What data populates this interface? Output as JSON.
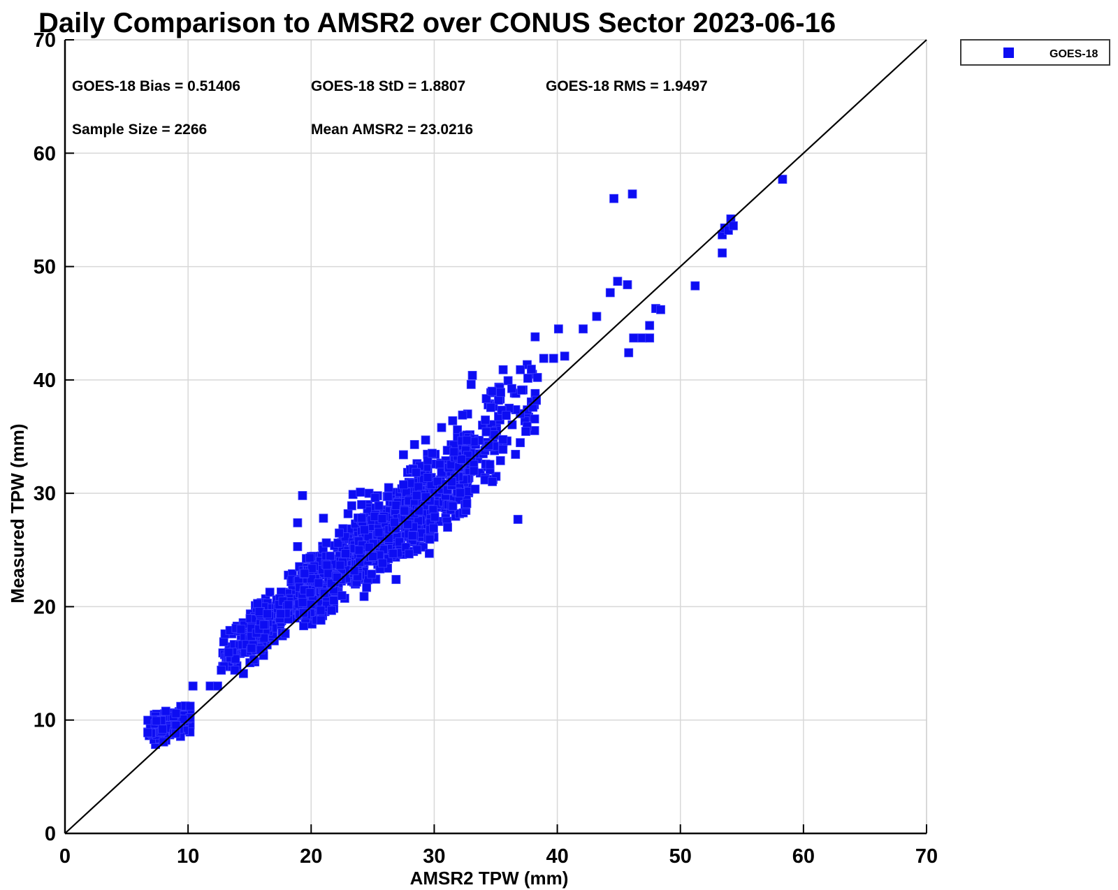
{
  "page": {
    "background": "#ffffff"
  },
  "chart_data": {
    "type": "scatter",
    "title": "Daily Comparison to AMSR2 over CONUS Sector 2023-06-16",
    "xlabel": "AMSR2 TPW (mm)",
    "ylabel": "Measured TPW (mm)",
    "xlim": [
      0,
      70
    ],
    "ylim": [
      0,
      70
    ],
    "x_ticks": [
      0,
      10,
      20,
      30,
      40,
      50,
      60,
      70
    ],
    "y_ticks": [
      0,
      10,
      20,
      30,
      40,
      50,
      60,
      70
    ],
    "grid": true,
    "grid_color": "#d8d8d8",
    "frame_color": "#cccccc",
    "axis_color": "#000000",
    "stats_annotations": [
      {
        "label": "GOES-18 Bias",
        "value": 0.51406,
        "text": "GOES-18 Bias = 0.51406"
      },
      {
        "label": "GOES-18 StD",
        "value": 1.8807,
        "text": "GOES-18 StD = 1.8807"
      },
      {
        "label": "GOES-18 RMS",
        "value": 1.9497,
        "text": "GOES-18 RMS = 1.9497"
      },
      {
        "label": "Sample Size",
        "value": 2266,
        "text": "Sample Size = 2266"
      },
      {
        "label": "Mean AMSR2",
        "value": 23.0216,
        "text": "Mean AMSR2 = 23.0216"
      }
    ],
    "reference_line": {
      "type": "identity",
      "from": [
        0,
        0
      ],
      "to": [
        70,
        70
      ],
      "color": "#000000"
    },
    "legend": {
      "position": "outside-top-right",
      "entries": [
        {
          "label": "GOES-18",
          "marker": "filled-square",
          "color": "#0d0df2"
        }
      ]
    },
    "series": [
      {
        "name": "GOES-18",
        "marker": "square",
        "marker_px": 12,
        "color": "#0d0df2",
        "edge_color": "#3c3cff",
        "sample_size": 2266,
        "seed": 11,
        "outlier_points": [
          [
            10.4,
            13.0
          ],
          [
            11.8,
            13.0
          ],
          [
            12.4,
            13.0
          ],
          [
            12.7,
            14.4
          ],
          [
            13.8,
            14.4
          ],
          [
            14.5,
            14.1
          ],
          [
            12.9,
            16.9
          ],
          [
            13.0,
            17.6
          ],
          [
            13.4,
            17.9
          ],
          [
            13.9,
            18.1
          ],
          [
            14.3,
            18.0
          ],
          [
            18.9,
            25.3
          ],
          [
            18.9,
            27.4
          ],
          [
            21.0,
            27.8
          ],
          [
            19.3,
            29.8
          ],
          [
            23.0,
            28.2
          ],
          [
            23.3,
            28.9
          ],
          [
            23.4,
            29.9
          ],
          [
            24.0,
            30.1
          ],
          [
            24.1,
            29.0
          ],
          [
            24.7,
            30.0
          ],
          [
            25.2,
            29.6
          ],
          [
            25.5,
            28.9
          ],
          [
            26.3,
            30.5
          ],
          [
            27.5,
            33.4
          ],
          [
            28.4,
            34.3
          ],
          [
            29.3,
            34.7
          ],
          [
            30.6,
            35.8
          ],
          [
            31.5,
            36.4
          ],
          [
            32.3,
            36.9
          ],
          [
            24.3,
            20.9
          ],
          [
            26.9,
            22.4
          ],
          [
            29.6,
            24.7
          ],
          [
            36.8,
            27.7
          ],
          [
            33.0,
            39.6
          ],
          [
            33.1,
            40.4
          ],
          [
            34.7,
            39.0
          ],
          [
            35.4,
            38.9
          ],
          [
            37.1,
            39.1
          ],
          [
            38.3,
            38.2
          ],
          [
            35.6,
            40.9
          ],
          [
            37.0,
            40.9
          ],
          [
            38.2,
            43.8
          ],
          [
            38.9,
            41.9
          ],
          [
            39.7,
            41.9
          ],
          [
            40.6,
            42.1
          ],
          [
            40.1,
            44.5
          ],
          [
            42.1,
            44.5
          ],
          [
            43.2,
            45.6
          ],
          [
            44.3,
            47.7
          ],
          [
            44.9,
            48.7
          ],
          [
            45.7,
            48.4
          ],
          [
            45.8,
            42.4
          ],
          [
            46.2,
            43.7
          ],
          [
            46.9,
            43.7
          ],
          [
            47.5,
            43.7
          ],
          [
            47.5,
            44.8
          ],
          [
            48.0,
            46.3
          ],
          [
            48.4,
            46.2
          ],
          [
            51.2,
            48.3
          ],
          [
            44.6,
            56.0
          ],
          [
            46.1,
            56.4
          ],
          [
            53.4,
            51.2
          ],
          [
            53.4,
            52.8
          ],
          [
            53.6,
            53.4
          ],
          [
            53.9,
            53.2
          ],
          [
            54.1,
            54.2
          ],
          [
            54.3,
            53.6
          ],
          [
            58.3,
            57.7
          ]
        ],
        "density_clusters": [
          {
            "shape": "blob",
            "n": 170,
            "cx": 8.45,
            "cy": 9.55,
            "sx": 0.78,
            "sy": 0.6,
            "tilt": 0.35,
            "xr": [
              6.3,
              10.8
            ],
            "yr": [
              7.8,
              11.4
            ]
          },
          {
            "shape": "band",
            "n": 90,
            "x0": 12.8,
            "x1": 16.5,
            "offset": 2.3,
            "spread": 0.95
          },
          {
            "shape": "band",
            "n": 200,
            "x0": 15.0,
            "x1": 20.5,
            "offset": 2.1,
            "spread": 1.15
          },
          {
            "shape": "band",
            "n": 330,
            "x0": 19.0,
            "x1": 25.5,
            "offset": 1.2,
            "spread": 1.45
          },
          {
            "shape": "band",
            "n": 340,
            "x0": 23.5,
            "x1": 29.5,
            "offset": 0.6,
            "spread": 1.55
          },
          {
            "shape": "band",
            "n": 230,
            "x0": 27.5,
            "x1": 33.0,
            "offset": 0.0,
            "spread": 1.75
          },
          {
            "shape": "band",
            "n": 100,
            "x0": 31.0,
            "x1": 35.5,
            "offset": 0.1,
            "spread": 1.9
          },
          {
            "shape": "band",
            "n": 45,
            "x0": 34.0,
            "x1": 38.5,
            "offset": 0.6,
            "spread": 2.1
          }
        ]
      }
    ]
  }
}
